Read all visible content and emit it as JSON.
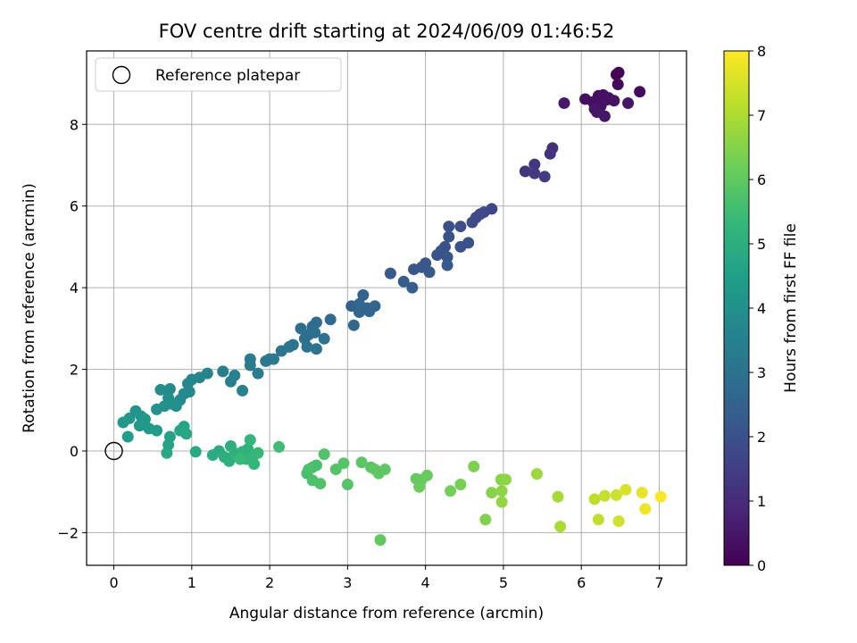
{
  "chart_data": {
    "type": "scatter",
    "title": "FOV centre drift starting at 2024/06/09 01:46:52",
    "xlabel": "Angular distance from reference (arcmin)",
    "ylabel": "Rotation from reference (arcmin)",
    "xlim": [
      -0.35,
      7.35
    ],
    "ylim": [
      -2.8,
      9.8
    ],
    "xticks": [
      0,
      1,
      2,
      3,
      4,
      5,
      6,
      7
    ],
    "yticks": [
      -2,
      0,
      2,
      4,
      6,
      8
    ],
    "grid": true,
    "legend": {
      "placement": "top-left",
      "entries": [
        "Reference platepar"
      ]
    },
    "reference_point": {
      "x": 0,
      "y": 0
    },
    "colorbar": {
      "label": "Hours from first FF file",
      "range": [
        0,
        8
      ],
      "ticks": [
        0,
        1,
        2,
        3,
        4,
        5,
        6,
        7,
        8
      ],
      "colormap": "viridis",
      "colors": [
        "#440154",
        "#482878",
        "#3e4989",
        "#31688e",
        "#26828e",
        "#1f9e89",
        "#35b779",
        "#6ece58",
        "#b5de2b",
        "#fde725"
      ]
    },
    "points": [
      {
        "x": 6.48,
        "y": 9.27,
        "c": 0.1
      },
      {
        "x": 6.45,
        "y": 9.22,
        "c": 0.1
      },
      {
        "x": 6.47,
        "y": 8.98,
        "c": 0.2
      },
      {
        "x": 6.75,
        "y": 8.8,
        "c": 0.2
      },
      {
        "x": 6.05,
        "y": 8.62,
        "c": 0.3
      },
      {
        "x": 6.15,
        "y": 8.55,
        "c": 0.3
      },
      {
        "x": 6.22,
        "y": 8.7,
        "c": 0.3
      },
      {
        "x": 6.28,
        "y": 8.72,
        "c": 0.35
      },
      {
        "x": 6.35,
        "y": 8.65,
        "c": 0.35
      },
      {
        "x": 6.42,
        "y": 8.58,
        "c": 0.4
      },
      {
        "x": 6.25,
        "y": 8.45,
        "c": 0.4
      },
      {
        "x": 6.17,
        "y": 8.38,
        "c": 0.45
      },
      {
        "x": 6.3,
        "y": 8.2,
        "c": 0.45
      },
      {
        "x": 6.6,
        "y": 8.52,
        "c": 0.5
      },
      {
        "x": 5.78,
        "y": 8.52,
        "c": 0.55
      },
      {
        "x": 6.2,
        "y": 8.3,
        "c": 0.5
      },
      {
        "x": 6.32,
        "y": 8.6,
        "c": 0.4
      },
      {
        "x": 5.63,
        "y": 7.42,
        "c": 1.1
      },
      {
        "x": 5.6,
        "y": 7.28,
        "c": 1.15
      },
      {
        "x": 5.28,
        "y": 6.85,
        "c": 1.25
      },
      {
        "x": 5.4,
        "y": 7.02,
        "c": 1.3
      },
      {
        "x": 5.4,
        "y": 6.8,
        "c": 1.35
      },
      {
        "x": 5.53,
        "y": 6.72,
        "c": 1.4
      },
      {
        "x": 4.85,
        "y": 5.93,
        "c": 1.7
      },
      {
        "x": 4.75,
        "y": 5.85,
        "c": 1.75
      },
      {
        "x": 4.7,
        "y": 5.8,
        "c": 1.8
      },
      {
        "x": 4.65,
        "y": 5.72,
        "c": 1.8
      },
      {
        "x": 4.6,
        "y": 5.6,
        "c": 1.85
      },
      {
        "x": 4.45,
        "y": 5.5,
        "c": 1.9
      },
      {
        "x": 4.3,
        "y": 5.5,
        "c": 1.95
      },
      {
        "x": 4.3,
        "y": 5.25,
        "c": 2.0
      },
      {
        "x": 4.55,
        "y": 5.1,
        "c": 2.0
      },
      {
        "x": 4.45,
        "y": 5.0,
        "c": 2.05
      },
      {
        "x": 4.25,
        "y": 5.0,
        "c": 2.05
      },
      {
        "x": 4.2,
        "y": 4.9,
        "c": 2.1
      },
      {
        "x": 4.15,
        "y": 4.8,
        "c": 2.1
      },
      {
        "x": 4.28,
        "y": 4.75,
        "c": 2.15
      },
      {
        "x": 4.0,
        "y": 4.6,
        "c": 2.15
      },
      {
        "x": 3.95,
        "y": 4.5,
        "c": 2.2
      },
      {
        "x": 3.85,
        "y": 4.45,
        "c": 2.2
      },
      {
        "x": 4.05,
        "y": 4.38,
        "c": 2.25
      },
      {
        "x": 4.28,
        "y": 4.55,
        "c": 2.25
      },
      {
        "x": 3.55,
        "y": 4.35,
        "c": 2.3
      },
      {
        "x": 3.72,
        "y": 4.15,
        "c": 2.35
      },
      {
        "x": 3.83,
        "y": 4.0,
        "c": 2.35
      },
      {
        "x": 3.05,
        "y": 3.55,
        "c": 2.5
      },
      {
        "x": 3.2,
        "y": 3.82,
        "c": 2.55
      },
      {
        "x": 3.25,
        "y": 3.5,
        "c": 2.55
      },
      {
        "x": 3.15,
        "y": 3.6,
        "c": 2.6
      },
      {
        "x": 3.35,
        "y": 3.55,
        "c": 2.6
      },
      {
        "x": 3.28,
        "y": 3.42,
        "c": 2.65
      },
      {
        "x": 3.15,
        "y": 3.4,
        "c": 2.65
      },
      {
        "x": 3.08,
        "y": 3.08,
        "c": 2.7
      },
      {
        "x": 2.78,
        "y": 3.22,
        "c": 2.75
      },
      {
        "x": 2.6,
        "y": 3.15,
        "c": 2.8
      },
      {
        "x": 2.55,
        "y": 3.05,
        "c": 2.85
      },
      {
        "x": 2.4,
        "y": 3.0,
        "c": 2.9
      },
      {
        "x": 2.5,
        "y": 2.85,
        "c": 2.9
      },
      {
        "x": 2.45,
        "y": 2.75,
        "c": 2.95
      },
      {
        "x": 2.58,
        "y": 2.9,
        "c": 2.95
      },
      {
        "x": 2.7,
        "y": 2.75,
        "c": 3.0
      },
      {
        "x": 2.6,
        "y": 2.5,
        "c": 3.0
      },
      {
        "x": 2.48,
        "y": 2.55,
        "c": 3.05
      },
      {
        "x": 2.3,
        "y": 2.6,
        "c": 3.1
      },
      {
        "x": 2.25,
        "y": 2.55,
        "c": 3.1
      },
      {
        "x": 2.15,
        "y": 2.45,
        "c": 3.15
      },
      {
        "x": 2.05,
        "y": 2.25,
        "c": 3.2
      },
      {
        "x": 1.95,
        "y": 2.2,
        "c": 3.2
      },
      {
        "x": 2.0,
        "y": 2.25,
        "c": 3.25
      },
      {
        "x": 1.75,
        "y": 2.25,
        "c": 3.3
      },
      {
        "x": 1.75,
        "y": 2.1,
        "c": 3.35
      },
      {
        "x": 1.85,
        "y": 1.9,
        "c": 3.4
      },
      {
        "x": 1.4,
        "y": 1.95,
        "c": 3.45
      },
      {
        "x": 1.55,
        "y": 1.85,
        "c": 3.5
      },
      {
        "x": 1.5,
        "y": 1.7,
        "c": 3.5
      },
      {
        "x": 1.65,
        "y": 1.48,
        "c": 3.55
      },
      {
        "x": 1.2,
        "y": 1.9,
        "c": 3.6
      },
      {
        "x": 1.1,
        "y": 1.8,
        "c": 3.65
      },
      {
        "x": 1.0,
        "y": 1.75,
        "c": 3.7
      },
      {
        "x": 0.95,
        "y": 1.65,
        "c": 3.7
      },
      {
        "x": 0.97,
        "y": 1.45,
        "c": 3.75
      },
      {
        "x": 0.9,
        "y": 1.4,
        "c": 3.8
      },
      {
        "x": 0.85,
        "y": 1.25,
        "c": 3.8
      },
      {
        "x": 0.72,
        "y": 1.52,
        "c": 3.85
      },
      {
        "x": 0.6,
        "y": 1.5,
        "c": 3.9
      },
      {
        "x": 0.7,
        "y": 1.3,
        "c": 3.9
      },
      {
        "x": 0.75,
        "y": 1.15,
        "c": 3.95
      },
      {
        "x": 0.65,
        "y": 1.1,
        "c": 4.0
      },
      {
        "x": 0.8,
        "y": 1.1,
        "c": 4.0
      },
      {
        "x": 0.55,
        "y": 1.02,
        "c": 4.05
      },
      {
        "x": 0.28,
        "y": 0.98,
        "c": 4.1
      },
      {
        "x": 0.35,
        "y": 0.85,
        "c": 4.15
      },
      {
        "x": 0.2,
        "y": 0.8,
        "c": 4.2
      },
      {
        "x": 0.12,
        "y": 0.7,
        "c": 4.25
      },
      {
        "x": 0.4,
        "y": 0.78,
        "c": 4.3
      },
      {
        "x": 0.33,
        "y": 0.62,
        "c": 4.3
      },
      {
        "x": 0.45,
        "y": 0.55,
        "c": 4.35
      },
      {
        "x": 0.55,
        "y": 0.5,
        "c": 4.4
      },
      {
        "x": 0.18,
        "y": 0.35,
        "c": 4.45
      },
      {
        "x": 0.72,
        "y": 0.35,
        "c": 4.6
      },
      {
        "x": 0.7,
        "y": 0.15,
        "c": 4.65
      },
      {
        "x": 0.85,
        "y": 0.5,
        "c": 4.7
      },
      {
        "x": 0.9,
        "y": 0.6,
        "c": 4.7
      },
      {
        "x": 0.93,
        "y": 0.42,
        "c": 4.75
      },
      {
        "x": 0.68,
        "y": -0.05,
        "c": 4.8
      },
      {
        "x": 1.05,
        "y": -0.02,
        "c": 4.85
      },
      {
        "x": 1.27,
        "y": -0.1,
        "c": 4.9
      },
      {
        "x": 1.35,
        "y": 0.0,
        "c": 4.95
      },
      {
        "x": 1.42,
        "y": -0.15,
        "c": 5.0
      },
      {
        "x": 1.5,
        "y": 0.12,
        "c": 5.0
      },
      {
        "x": 1.48,
        "y": -0.25,
        "c": 5.05
      },
      {
        "x": 1.55,
        "y": -0.05,
        "c": 5.1
      },
      {
        "x": 1.65,
        "y": -0.02,
        "c": 5.15
      },
      {
        "x": 1.72,
        "y": 0.05,
        "c": 5.15
      },
      {
        "x": 1.7,
        "y": -0.2,
        "c": 5.2
      },
      {
        "x": 1.75,
        "y": 0.27,
        "c": 5.25
      },
      {
        "x": 1.78,
        "y": -0.15,
        "c": 5.25
      },
      {
        "x": 1.8,
        "y": -0.32,
        "c": 5.3
      },
      {
        "x": 1.85,
        "y": -0.05,
        "c": 5.35
      },
      {
        "x": 1.62,
        "y": -0.2,
        "c": 5.4
      },
      {
        "x": 2.12,
        "y": 0.1,
        "c": 5.5
      },
      {
        "x": 2.48,
        "y": -0.55,
        "c": 5.6
      },
      {
        "x": 2.55,
        "y": -0.4,
        "c": 5.65
      },
      {
        "x": 2.6,
        "y": -0.35,
        "c": 5.65
      },
      {
        "x": 2.5,
        "y": -0.45,
        "c": 5.7
      },
      {
        "x": 2.55,
        "y": -0.72,
        "c": 5.7
      },
      {
        "x": 2.65,
        "y": -0.8,
        "c": 5.75
      },
      {
        "x": 2.7,
        "y": -0.08,
        "c": 5.75
      },
      {
        "x": 2.85,
        "y": -0.45,
        "c": 5.8
      },
      {
        "x": 2.95,
        "y": -0.3,
        "c": 5.85
      },
      {
        "x": 3.0,
        "y": -0.82,
        "c": 5.85
      },
      {
        "x": 3.18,
        "y": -0.28,
        "c": 5.9
      },
      {
        "x": 3.3,
        "y": -0.4,
        "c": 5.9
      },
      {
        "x": 3.35,
        "y": -0.45,
        "c": 5.95
      },
      {
        "x": 3.4,
        "y": -0.55,
        "c": 5.95
      },
      {
        "x": 3.48,
        "y": -0.45,
        "c": 6.0
      },
      {
        "x": 3.42,
        "y": -2.18,
        "c": 6.0
      },
      {
        "x": 3.88,
        "y": -0.68,
        "c": 6.05
      },
      {
        "x": 3.95,
        "y": -0.7,
        "c": 6.1
      },
      {
        "x": 4.02,
        "y": -0.6,
        "c": 6.1
      },
      {
        "x": 3.92,
        "y": -0.88,
        "c": 6.15
      },
      {
        "x": 4.32,
        "y": -0.98,
        "c": 6.25
      },
      {
        "x": 4.45,
        "y": -0.82,
        "c": 6.3
      },
      {
        "x": 4.62,
        "y": -0.38,
        "c": 6.4
      },
      {
        "x": 4.77,
        "y": -1.68,
        "c": 6.45
      },
      {
        "x": 4.85,
        "y": -1.02,
        "c": 6.5
      },
      {
        "x": 4.97,
        "y": -0.7,
        "c": 6.55
      },
      {
        "x": 5.03,
        "y": -0.7,
        "c": 6.6
      },
      {
        "x": 4.98,
        "y": -0.98,
        "c": 6.6
      },
      {
        "x": 4.98,
        "y": -1.25,
        "c": 6.65
      },
      {
        "x": 5.43,
        "y": -0.56,
        "c": 6.8
      },
      {
        "x": 5.7,
        "y": -1.12,
        "c": 6.9
      },
      {
        "x": 5.73,
        "y": -1.85,
        "c": 6.95
      },
      {
        "x": 6.17,
        "y": -1.18,
        "c": 7.2
      },
      {
        "x": 6.22,
        "y": -1.68,
        "c": 7.25
      },
      {
        "x": 6.3,
        "y": -1.1,
        "c": 7.3
      },
      {
        "x": 6.45,
        "y": -1.08,
        "c": 7.4
      },
      {
        "x": 6.48,
        "y": -1.72,
        "c": 7.45
      },
      {
        "x": 6.57,
        "y": -0.95,
        "c": 7.55
      },
      {
        "x": 6.78,
        "y": -1.02,
        "c": 7.7
      },
      {
        "x": 6.82,
        "y": -1.42,
        "c": 7.8
      },
      {
        "x": 7.02,
        "y": -1.12,
        "c": 7.95
      }
    ]
  }
}
